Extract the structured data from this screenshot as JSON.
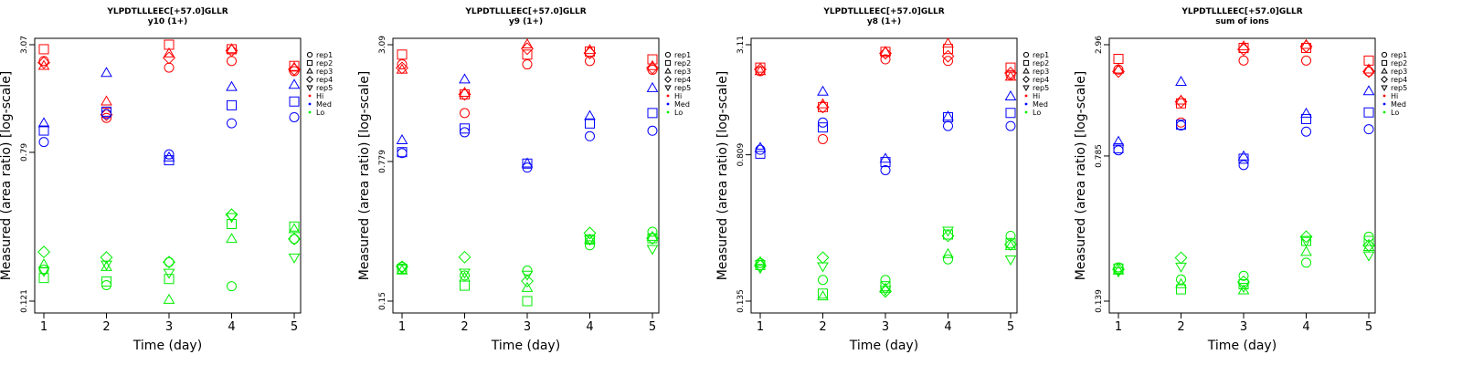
{
  "colors": {
    "Hi": "#ff0000",
    "Med": "#0000ff",
    "Lo": "#00ee00"
  },
  "legend": {
    "entries": [
      {
        "label": "rep1",
        "kind": "shape",
        "shape": "circle"
      },
      {
        "label": "rep2",
        "kind": "shape",
        "shape": "square"
      },
      {
        "label": "rep3",
        "kind": "shape",
        "shape": "triangle-up"
      },
      {
        "label": "rep4",
        "kind": "shape",
        "shape": "diamond"
      },
      {
        "label": "rep5",
        "kind": "shape",
        "shape": "triangle-down"
      },
      {
        "label": "Hi",
        "kind": "dot",
        "color": "#ff0000"
      },
      {
        "label": "Med",
        "kind": "dot",
        "color": "#0000ff"
      },
      {
        "label": "Lo",
        "kind": "dot",
        "color": "#00ee00"
      }
    ]
  },
  "chart_data": [
    {
      "type": "scatter",
      "title": "YLPDTLLLEEC[+57.0]GLLR",
      "subtitle": "y10 (1+)",
      "xlabel": "Time (day)",
      "ylabel": "Measured (area ratio) [log-scale]",
      "y_scale": "log",
      "y_ticks": [
        "0.121",
        "0.79",
        "3.07"
      ],
      "xlim": [
        1,
        5
      ],
      "ylim": [
        0.121,
        3.07
      ],
      "x_ticks": [
        1,
        2,
        3,
        4,
        5
      ],
      "grid": false,
      "legend_position": "right",
      "series": [
        {
          "group": "Hi",
          "replicate": "rep1",
          "x": [
            1,
            2,
            3,
            4,
            5
          ],
          "y": [
            2.5,
            1.22,
            2.3,
            2.5,
            2.2
          ]
        },
        {
          "group": "Hi",
          "replicate": "rep2",
          "x": [
            1,
            2,
            3,
            4,
            5
          ],
          "y": [
            2.9,
            1.3,
            3.07,
            2.9,
            2.35
          ]
        },
        {
          "group": "Hi",
          "replicate": "rep3",
          "x": [
            1,
            2,
            3,
            4,
            5
          ],
          "y": [
            2.35,
            1.5,
            2.75,
            2.9,
            2.3
          ]
        },
        {
          "group": "Hi",
          "replicate": "rep4",
          "x": [
            1,
            2,
            3,
            4,
            5
          ],
          "y": [
            2.45,
            1.27,
            2.6,
            2.85,
            2.25
          ]
        },
        {
          "group": "Med",
          "replicate": "rep1",
          "x": [
            1,
            2,
            3,
            4,
            5
          ],
          "y": [
            0.9,
            1.28,
            0.77,
            1.14,
            1.23
          ]
        },
        {
          "group": "Med",
          "replicate": "rep2",
          "x": [
            1,
            2,
            3,
            4,
            5
          ],
          "y": [
            1.04,
            1.32,
            0.715,
            1.43,
            1.5
          ]
        },
        {
          "group": "Med",
          "replicate": "rep3",
          "x": [
            1,
            2,
            3,
            4,
            5
          ],
          "y": [
            1.14,
            2.15,
            0.74,
            1.8,
            1.85
          ]
        },
        {
          "group": "Lo",
          "replicate": "rep1",
          "x": [
            1,
            2,
            3,
            4,
            5
          ],
          "y": [
            0.18,
            0.148,
            0.198,
            0.146,
            0.265
          ]
        },
        {
          "group": "Lo",
          "replicate": "rep2",
          "x": [
            1,
            2,
            3,
            4,
            5
          ],
          "y": [
            0.162,
            0.155,
            0.16,
            0.32,
            0.31
          ]
        },
        {
          "group": "Lo",
          "replicate": "rep3",
          "x": [
            1,
            2,
            3,
            4,
            5
          ],
          "y": [
            0.192,
            0.186,
            0.123,
            0.265,
            0.3
          ]
        },
        {
          "group": "Lo",
          "replicate": "rep4",
          "x": [
            1,
            2,
            3,
            4,
            5
          ],
          "y": [
            0.225,
            0.21,
            0.198,
            0.36,
            0.265
          ]
        },
        {
          "group": "Lo",
          "replicate": "rep5",
          "x": [
            1,
            2,
            3,
            4,
            5
          ],
          "y": [
            0.177,
            0.192,
            0.173,
            0.35,
            0.21
          ]
        }
      ]
    },
    {
      "type": "scatter",
      "title": "YLPDTLLLEEC[+57.0]GLLR",
      "subtitle": "y9 (1+)",
      "xlabel": "Time (day)",
      "ylabel": "Measured (area ratio) [log-scale]",
      "y_scale": "log",
      "y_ticks": [
        "0.15",
        "0.779",
        "3.09"
      ],
      "xlim": [
        1,
        5
      ],
      "ylim": [
        0.15,
        3.09
      ],
      "x_ticks": [
        1,
        2,
        3,
        4,
        5
      ],
      "grid": false,
      "legend_position": "right",
      "series": [
        {
          "group": "Hi",
          "replicate": "rep1",
          "x": [
            1,
            2,
            3,
            4,
            5
          ],
          "y": [
            2.45,
            1.38,
            2.45,
            2.55,
            2.3
          ]
        },
        {
          "group": "Hi",
          "replicate": "rep2",
          "x": [
            1,
            2,
            3,
            4,
            5
          ],
          "y": [
            2.75,
            1.72,
            2.75,
            2.85,
            2.6
          ]
        },
        {
          "group": "Hi",
          "replicate": "rep3",
          "x": [
            1,
            2,
            3,
            4,
            5
          ],
          "y": [
            2.3,
            1.75,
            3.1,
            2.9,
            2.4
          ]
        },
        {
          "group": "Hi",
          "replicate": "rep4",
          "x": [
            1,
            2,
            3,
            4,
            5
          ],
          "y": [
            2.35,
            1.72,
            2.95,
            2.8,
            2.35
          ]
        },
        {
          "group": "Med",
          "replicate": "rep1",
          "x": [
            1,
            2,
            3,
            4,
            5
          ],
          "y": [
            0.86,
            1.1,
            0.725,
            1.05,
            1.12
          ]
        },
        {
          "group": "Med",
          "replicate": "rep2",
          "x": [
            1,
            2,
            3,
            4,
            5
          ],
          "y": [
            0.87,
            1.15,
            0.76,
            1.22,
            1.38
          ]
        },
        {
          "group": "Med",
          "replicate": "rep3",
          "x": [
            1,
            2,
            3,
            4,
            5
          ],
          "y": [
            1.0,
            2.05,
            0.76,
            1.33,
            1.85
          ]
        },
        {
          "group": "Lo",
          "replicate": "rep1",
          "x": [
            1,
            2,
            3,
            4,
            5
          ],
          "y": [
            0.225,
            0.203,
            0.215,
            0.29,
            0.34
          ]
        },
        {
          "group": "Lo",
          "replicate": "rep2",
          "x": [
            1,
            2,
            3,
            4,
            5
          ],
          "y": [
            0.22,
            0.18,
            0.15,
            0.31,
            0.315
          ]
        },
        {
          "group": "Lo",
          "replicate": "rep3",
          "x": [
            1,
            2,
            3,
            4,
            5
          ],
          "y": [
            0.215,
            0.198,
            0.175,
            0.31,
            0.32
          ]
        },
        {
          "group": "Lo",
          "replicate": "rep4",
          "x": [
            1,
            2,
            3,
            4,
            5
          ],
          "y": [
            0.225,
            0.252,
            0.19,
            0.335,
            0.315
          ]
        },
        {
          "group": "Lo",
          "replicate": "rep5",
          "x": [
            1,
            2,
            3,
            4,
            5
          ],
          "y": [
            0.22,
            0.21,
            0.205,
            0.31,
            0.278
          ]
        }
      ]
    },
    {
      "type": "scatter",
      "title": "YLPDTLLLEEC[+57.0]GLLR",
      "subtitle": "y8 (1+)",
      "xlabel": "Time (day)",
      "ylabel": "Measured (area ratio) [log-scale]",
      "y_scale": "log",
      "y_ticks": [
        "0.135",
        "0.809",
        "3.11"
      ],
      "xlim": [
        1,
        5
      ],
      "ylim": [
        0.135,
        3.11
      ],
      "x_ticks": [
        1,
        2,
        3,
        4,
        5
      ],
      "grid": false,
      "legend_position": "right",
      "series": [
        {
          "group": "Hi",
          "replicate": "rep1",
          "x": [
            1,
            2,
            3,
            4,
            5
          ],
          "y": [
            2.25,
            0.98,
            2.6,
            2.55,
            2.15
          ]
        },
        {
          "group": "Hi",
          "replicate": "rep2",
          "x": [
            1,
            2,
            3,
            4,
            5
          ],
          "y": [
            2.35,
            1.45,
            2.85,
            2.95,
            2.35
          ]
        },
        {
          "group": "Hi",
          "replicate": "rep3",
          "x": [
            1,
            2,
            3,
            4,
            5
          ],
          "y": [
            2.25,
            1.5,
            2.85,
            3.15,
            2.1
          ]
        },
        {
          "group": "Hi",
          "replicate": "rep4",
          "x": [
            1,
            2,
            3,
            4,
            5
          ],
          "y": [
            2.3,
            1.45,
            2.8,
            2.7,
            2.2
          ]
        },
        {
          "group": "Med",
          "replicate": "rep1",
          "x": [
            1,
            2,
            3,
            4,
            5
          ],
          "y": [
            0.86,
            1.2,
            0.67,
            1.15,
            1.15
          ]
        },
        {
          "group": "Med",
          "replicate": "rep2",
          "x": [
            1,
            2,
            3,
            4,
            5
          ],
          "y": [
            0.82,
            1.13,
            0.74,
            1.28,
            1.35
          ]
        },
        {
          "group": "Med",
          "replicate": "rep3",
          "x": [
            1,
            2,
            3,
            4,
            5
          ],
          "y": [
            0.88,
            1.75,
            0.77,
            1.29,
            1.65
          ]
        },
        {
          "group": "Lo",
          "replicate": "rep1",
          "x": [
            1,
            2,
            3,
            4,
            5
          ],
          "y": [
            0.215,
            0.175,
            0.175,
            0.225,
            0.3
          ]
        },
        {
          "group": "Lo",
          "replicate": "rep2",
          "x": [
            1,
            2,
            3,
            4,
            5
          ],
          "y": [
            0.21,
            0.148,
            0.162,
            0.305,
            0.275
          ]
        },
        {
          "group": "Lo",
          "replicate": "rep3",
          "x": [
            1,
            2,
            3,
            4,
            5
          ],
          "y": [
            0.218,
            0.143,
            0.157,
            0.24,
            0.265
          ]
        },
        {
          "group": "Lo",
          "replicate": "rep4",
          "x": [
            1,
            2,
            3,
            4,
            5
          ],
          "y": [
            0.208,
            0.23,
            0.152,
            0.3,
            0.27
          ]
        },
        {
          "group": "Lo",
          "replicate": "rep5",
          "x": [
            1,
            2,
            3,
            4,
            5
          ],
          "y": [
            0.203,
            0.207,
            0.155,
            0.32,
            0.225
          ]
        }
      ]
    },
    {
      "type": "scatter",
      "title": "YLPDTLLLEEC[+57.0]GLLR",
      "subtitle": "sum of ions",
      "xlabel": "Time (day)",
      "ylabel": "Measured (area ratio) [log-scale]",
      "y_scale": "log",
      "y_ticks": [
        "0.139",
        "0.785",
        "2.96"
      ],
      "xlim": [
        1,
        5
      ],
      "ylim": [
        0.139,
        2.96
      ],
      "x_ticks": [
        1,
        2,
        3,
        4,
        5
      ],
      "grid": false,
      "legend_position": "right",
      "series": [
        {
          "group": "Hi",
          "replicate": "rep1",
          "x": [
            1,
            2,
            3,
            4,
            5
          ],
          "y": [
            2.2,
            1.17,
            2.45,
            2.45,
            2.15
          ]
        },
        {
          "group": "Hi",
          "replicate": "rep2",
          "x": [
            1,
            2,
            3,
            4,
            5
          ],
          "y": [
            2.5,
            1.47,
            2.85,
            2.85,
            2.45
          ]
        },
        {
          "group": "Hi",
          "replicate": "rep3",
          "x": [
            1,
            2,
            3,
            4,
            5
          ],
          "y": [
            2.2,
            1.52,
            2.9,
            2.95,
            2.2
          ]
        },
        {
          "group": "Hi",
          "replicate": "rep4",
          "x": [
            1,
            2,
            3,
            4,
            5
          ],
          "y": [
            2.15,
            1.5,
            2.8,
            2.9,
            2.15
          ]
        },
        {
          "group": "Med",
          "replicate": "rep1",
          "x": [
            1,
            2,
            3,
            4,
            5
          ],
          "y": [
            0.84,
            1.13,
            0.705,
            1.05,
            1.08
          ]
        },
        {
          "group": "Med",
          "replicate": "rep2",
          "x": [
            1,
            2,
            3,
            4,
            5
          ],
          "y": [
            0.86,
            1.14,
            0.76,
            1.22,
            1.32
          ]
        },
        {
          "group": "Med",
          "replicate": "rep3",
          "x": [
            1,
            2,
            3,
            4,
            5
          ],
          "y": [
            0.93,
            1.9,
            0.78,
            1.3,
            1.7
          ]
        },
        {
          "group": "Lo",
          "replicate": "rep1",
          "x": [
            1,
            2,
            3,
            4,
            5
          ],
          "y": [
            0.208,
            0.18,
            0.188,
            0.22,
            0.3
          ]
        },
        {
          "group": "Lo",
          "replicate": "rep2",
          "x": [
            1,
            2,
            3,
            4,
            5
          ],
          "y": [
            0.205,
            0.16,
            0.17,
            0.285,
            0.285
          ]
        },
        {
          "group": "Lo",
          "replicate": "rep3",
          "x": [
            1,
            2,
            3,
            4,
            5
          ],
          "y": [
            0.2,
            0.17,
            0.158,
            0.25,
            0.265
          ]
        },
        {
          "group": "Lo",
          "replicate": "rep4",
          "x": [
            1,
            2,
            3,
            4,
            5
          ],
          "y": [
            0.203,
            0.233,
            0.175,
            0.3,
            0.27
          ]
        },
        {
          "group": "Lo",
          "replicate": "rep5",
          "x": [
            1,
            2,
            3,
            4,
            5
          ],
          "y": [
            0.198,
            0.21,
            0.165,
            0.285,
            0.24
          ]
        }
      ]
    }
  ]
}
